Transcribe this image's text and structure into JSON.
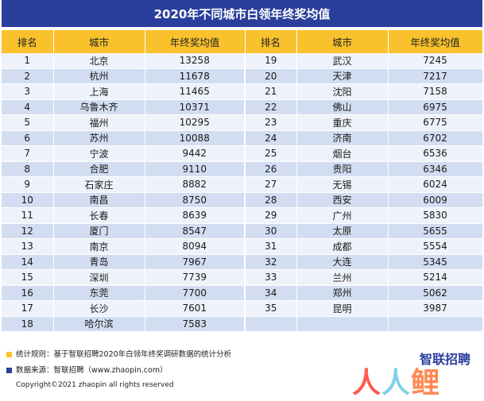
{
  "title": "2020年不同城市白领年终奖均值",
  "headers": {
    "rank": "排名",
    "city": "城市",
    "bonus": "年终奖均值"
  },
  "left_rows": [
    {
      "rank": "1",
      "city": "北京",
      "bonus": "13258"
    },
    {
      "rank": "2",
      "city": "杭州",
      "bonus": "11678"
    },
    {
      "rank": "3",
      "city": "上海",
      "bonus": "11465"
    },
    {
      "rank": "4",
      "city": "乌鲁木齐",
      "bonus": "10371"
    },
    {
      "rank": "5",
      "city": "福州",
      "bonus": "10295"
    },
    {
      "rank": "6",
      "city": "苏州",
      "bonus": "10088"
    },
    {
      "rank": "7",
      "city": "宁波",
      "bonus": "9442"
    },
    {
      "rank": "8",
      "city": "合肥",
      "bonus": "9110"
    },
    {
      "rank": "9",
      "city": "石家庄",
      "bonus": "8882"
    },
    {
      "rank": "10",
      "city": "南昌",
      "bonus": "8750"
    },
    {
      "rank": "11",
      "city": "长春",
      "bonus": "8639"
    },
    {
      "rank": "12",
      "city": "厦门",
      "bonus": "8547"
    },
    {
      "rank": "13",
      "city": "南京",
      "bonus": "8094"
    },
    {
      "rank": "14",
      "city": "青岛",
      "bonus": "7967"
    },
    {
      "rank": "15",
      "city": "深圳",
      "bonus": "7739"
    },
    {
      "rank": "16",
      "city": "东莞",
      "bonus": "7700"
    },
    {
      "rank": "17",
      "city": "长沙",
      "bonus": "7601"
    },
    {
      "rank": "18",
      "city": "哈尔滨",
      "bonus": "7583"
    }
  ],
  "right_rows": [
    {
      "rank": "19",
      "city": "武汉",
      "bonus": "7245"
    },
    {
      "rank": "20",
      "city": "天津",
      "bonus": "7217"
    },
    {
      "rank": "21",
      "city": "沈阳",
      "bonus": "7158"
    },
    {
      "rank": "22",
      "city": "佛山",
      "bonus": "6975"
    },
    {
      "rank": "23",
      "city": "重庆",
      "bonus": "6775"
    },
    {
      "rank": "24",
      "city": "济南",
      "bonus": "6702"
    },
    {
      "rank": "25",
      "city": "烟台",
      "bonus": "6536"
    },
    {
      "rank": "26",
      "city": "贵阳",
      "bonus": "6346"
    },
    {
      "rank": "27",
      "city": "无锡",
      "bonus": "6024"
    },
    {
      "rank": "28",
      "city": "西安",
      "bonus": "6009"
    },
    {
      "rank": "29",
      "city": "广州",
      "bonus": "5830"
    },
    {
      "rank": "30",
      "city": "太原",
      "bonus": "5655"
    },
    {
      "rank": "31",
      "city": "成都",
      "bonus": "5554"
    },
    {
      "rank": "32",
      "city": "大连",
      "bonus": "5345"
    },
    {
      "rank": "33",
      "city": "兰州",
      "bonus": "5214"
    },
    {
      "rank": "34",
      "city": "郑州",
      "bonus": "5062"
    },
    {
      "rank": "35",
      "city": "昆明",
      "bonus": "3987"
    },
    {
      "rank": "",
      "city": "",
      "bonus": ""
    }
  ],
  "footnotes": {
    "rule": "统计规则：基于智联招聘2020年白领年终奖调研数据的统计分析",
    "source": "数据来源：智联招聘（www.zhaopin.com）",
    "copyright": "Copyright©2021 zhaopin all rights reserved"
  },
  "brand": "智联招聘",
  "watermark": {
    "a": "人",
    "b": "人",
    "c": "鲤"
  },
  "colors": {
    "title_bg": "#2a3e9c",
    "header_bg": "#f9c22c",
    "row_light": "#eef2fa",
    "row_dark": "#d2ddf1"
  }
}
